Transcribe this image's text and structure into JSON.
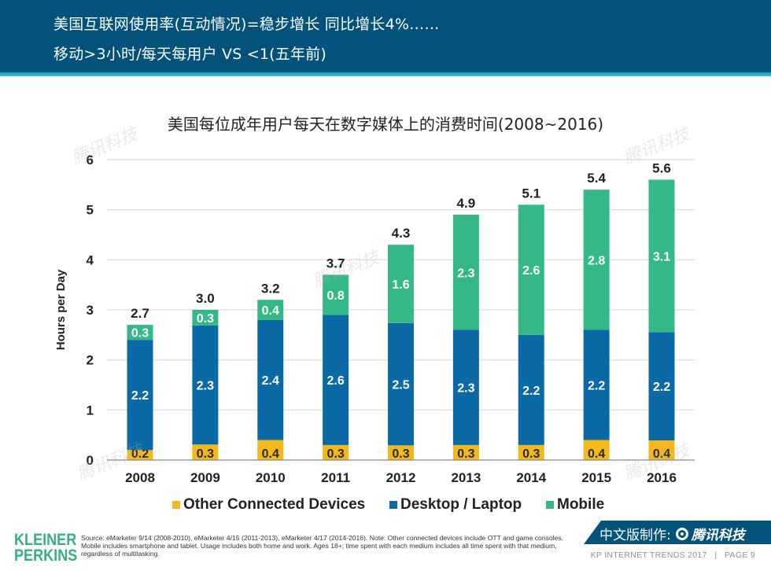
{
  "header": {
    "line1": "美国互联网使用率(互动情况)=稳步增长 同比增长4%……",
    "line2": "移动>3小时/每天每用户 VS <1(五年前)"
  },
  "colors": {
    "header_bg": "#02527c",
    "header_stripe": "#2fb1c8",
    "other": "#f2b81c",
    "desktop": "#0b6aa6",
    "mobile": "#35b888",
    "logo": "#36b07f"
  },
  "chart_data": {
    "type": "bar",
    "stacked": true,
    "title": "美国每位成年用户每天在数字媒体上的消费时间(2008~2016)",
    "xlabel": "",
    "ylabel": "Hours per Day",
    "ylim": [
      0,
      6
    ],
    "yticks": [
      0,
      1,
      2,
      3,
      4,
      5,
      6
    ],
    "grid": true,
    "legend_position": "bottom",
    "categories": [
      "2008",
      "2009",
      "2010",
      "2011",
      "2012",
      "2013",
      "2014",
      "2015",
      "2016"
    ],
    "series": [
      {
        "name": "Other Connected Devices",
        "color": "#f2b81c",
        "values": [
          0.2,
          0.3,
          0.4,
          0.3,
          0.3,
          0.3,
          0.3,
          0.4,
          0.4
        ],
        "labels": [
          "0.2",
          "0.3",
          "0.4",
          "0.3",
          "0.3",
          "0.3",
          "0.3",
          "0.4",
          "0.4"
        ]
      },
      {
        "name": "Desktop / Laptop",
        "color": "#0b6aa6",
        "values": [
          2.2,
          2.3,
          2.4,
          2.6,
          2.5,
          2.3,
          2.2,
          2.2,
          2.2
        ],
        "labels": [
          "2.2",
          "2.3",
          "2.4",
          "2.6",
          "2.5",
          "2.3",
          "2.2",
          "2.2",
          "2.2"
        ]
      },
      {
        "name": "Mobile",
        "color": "#35b888",
        "values": [
          0.3,
          0.3,
          0.4,
          0.8,
          1.6,
          2.3,
          2.6,
          2.8,
          3.1
        ],
        "labels": [
          "0.3",
          "0.3",
          "0.4",
          "0.8",
          "1.6",
          "2.3",
          "2.6",
          "2.8",
          "3.1"
        ]
      }
    ],
    "totals": [
      2.7,
      3.0,
      3.2,
      3.7,
      4.3,
      4.9,
      5.1,
      5.4,
      5.6
    ],
    "total_labels": [
      "2.7",
      "3.0",
      "3.2",
      "3.7",
      "4.3",
      "4.9",
      "5.1",
      "5.4",
      "5.6"
    ]
  },
  "legend": [
    {
      "label": "Other Connected Devices",
      "color": "#f2b81c"
    },
    {
      "label": "Desktop / Laptop",
      "color": "#0b6aa6"
    },
    {
      "label": "Mobile",
      "color": "#35b888"
    }
  ],
  "footer": {
    "logo_line1": "KLEINER",
    "logo_line2": "PERKINS",
    "source": "Source: eMarketer 9/14 (2008-2010), eMarketer 4/15 (2011-2013), eMarketer 4/17 (2014-2016). Note: Other connected devices include OTT and game consoles. Mobile includes smartphone and tablet. Usage includes both home and work. Ages 18+; time spent with each medium includes all time spent with that medium, regardless of multitasking.",
    "badge_prefix": "中文版制作:",
    "badge_brand": "腾讯科技",
    "report": "KP INTERNET TRENDS 2017",
    "separator": "|",
    "page": "PAGE 9"
  },
  "watermark_text": "腾讯科技"
}
